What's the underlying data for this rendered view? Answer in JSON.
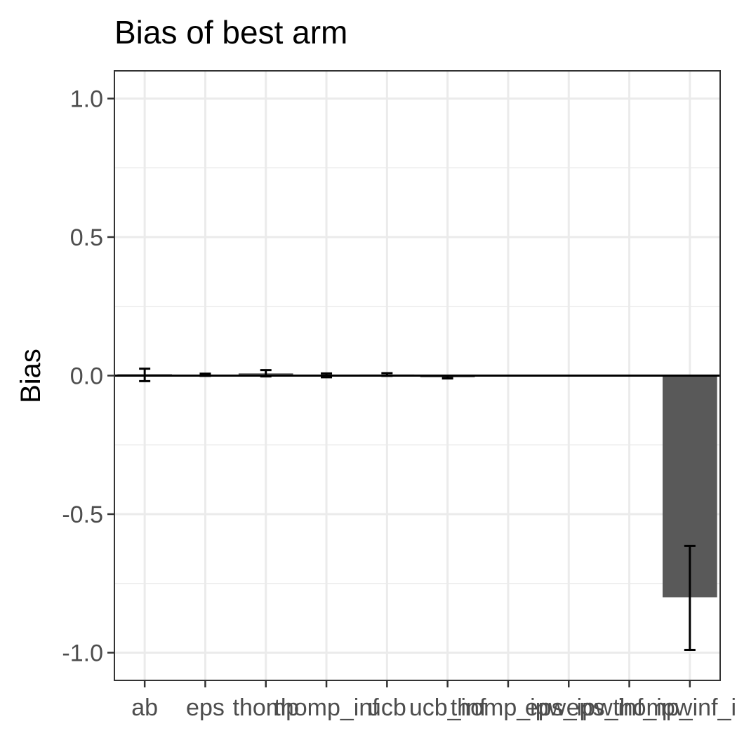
{
  "chart_data": {
    "type": "bar",
    "title": "Bias of best arm",
    "xlabel": "",
    "ylabel": "Bias",
    "ylim": [
      -1.1,
      1.1
    ],
    "yticks": [
      -1.0,
      -0.5,
      0.0,
      0.5,
      1.0
    ],
    "ytick_labels": [
      "-1.0",
      "-0.5",
      "0.0",
      "0.5",
      "1.0"
    ],
    "grid": true,
    "categories": [
      "ab",
      "eps",
      "thomp",
      "thomp_inf",
      "ucb",
      "ucb_inf",
      "thomp_ipw",
      "eps_ipw",
      "eps_inf_ipw",
      "thomp_inf_ipw"
    ],
    "values": [
      0.005,
      0.003,
      0.008,
      0.001,
      0.004,
      -0.006,
      0.0,
      0.0,
      0.0,
      -0.8
    ],
    "error_low": [
      -0.02,
      -0.001,
      -0.003,
      -0.006,
      -0.001,
      -0.01,
      0.0,
      0.0,
      0.0,
      -0.99
    ],
    "error_high": [
      0.025,
      0.007,
      0.02,
      0.008,
      0.009,
      -0.002,
      0.0,
      0.0,
      0.0,
      -0.615
    ],
    "colors": {
      "bar": "#595959",
      "error": "#000000",
      "grid": "#ebebeb",
      "panel_border": "#333333",
      "tick_text": "#4d4d4d",
      "title_text": "#000000"
    }
  }
}
